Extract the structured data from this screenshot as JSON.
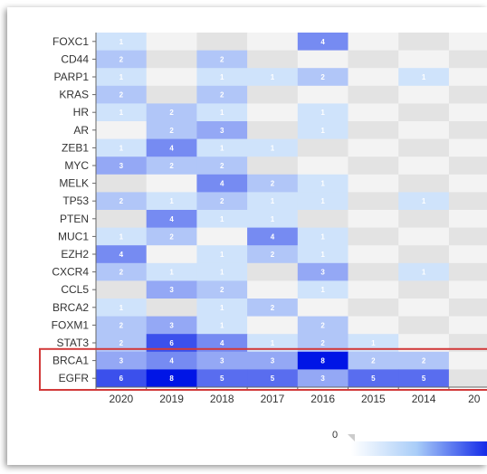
{
  "chart_data": {
    "type": "heatmap",
    "title": "",
    "xlabel": "",
    "ylabel": "",
    "columns": [
      "2020",
      "2019",
      "2018",
      "2017",
      "2016",
      "2015",
      "2014",
      "20"
    ],
    "rows": [
      {
        "label": "FOXC1",
        "values": [
          1,
          null,
          null,
          null,
          4,
          null,
          null,
          null
        ]
      },
      {
        "label": "CD44",
        "values": [
          2,
          null,
          2,
          null,
          null,
          null,
          null,
          null
        ]
      },
      {
        "label": "PARP1",
        "values": [
          1,
          null,
          1,
          1,
          2,
          null,
          1,
          null
        ]
      },
      {
        "label": "KRAS",
        "values": [
          2,
          null,
          2,
          null,
          null,
          null,
          null,
          null
        ]
      },
      {
        "label": "HR",
        "values": [
          1,
          2,
          1,
          null,
          1,
          null,
          null,
          null
        ]
      },
      {
        "label": "AR",
        "values": [
          null,
          2,
          3,
          null,
          1,
          null,
          null,
          null
        ]
      },
      {
        "label": "ZEB1",
        "values": [
          1,
          4,
          1,
          1,
          null,
          null,
          null,
          null
        ]
      },
      {
        "label": "MYC",
        "values": [
          3,
          2,
          2,
          null,
          null,
          null,
          null,
          null
        ]
      },
      {
        "label": "MELK",
        "values": [
          null,
          null,
          4,
          2,
          1,
          null,
          null,
          null
        ]
      },
      {
        "label": "TP53",
        "values": [
          2,
          1,
          2,
          1,
          1,
          null,
          1,
          null
        ]
      },
      {
        "label": "PTEN",
        "values": [
          null,
          4,
          1,
          1,
          null,
          null,
          null,
          null
        ]
      },
      {
        "label": "MUC1",
        "values": [
          1,
          2,
          null,
          4,
          1,
          null,
          null,
          null
        ]
      },
      {
        "label": "EZH2",
        "values": [
          4,
          null,
          1,
          2,
          1,
          null,
          null,
          null
        ]
      },
      {
        "label": "CXCR4",
        "values": [
          2,
          1,
          1,
          null,
          3,
          null,
          1,
          null
        ]
      },
      {
        "label": "CCL5",
        "values": [
          null,
          3,
          2,
          null,
          1,
          null,
          null,
          null
        ]
      },
      {
        "label": "BRCA2",
        "values": [
          1,
          null,
          1,
          2,
          null,
          null,
          null,
          null
        ]
      },
      {
        "label": "FOXM1",
        "values": [
          2,
          3,
          1,
          null,
          2,
          null,
          null,
          null
        ]
      },
      {
        "label": "STAT3",
        "values": [
          2,
          6,
          4,
          1,
          2,
          1,
          null,
          null
        ]
      },
      {
        "label": "BRCA1",
        "values": [
          3,
          4,
          3,
          3,
          8,
          2,
          2,
          null
        ]
      },
      {
        "label": "EGFR",
        "values": [
          6,
          8,
          5,
          5,
          3,
          5,
          5,
          null
        ]
      }
    ],
    "scale": {
      "min": 0,
      "max": 8,
      "min_label": "0"
    },
    "colors": {
      "low": "#cfe3fb",
      "high": "#0015e6",
      "empty_alt": [
        "#e3e3e3",
        "#f3f3f3"
      ],
      "highlight_box": "#d23a3a"
    },
    "highlighted_rows": [
      "BRCA1",
      "EGFR"
    ]
  }
}
